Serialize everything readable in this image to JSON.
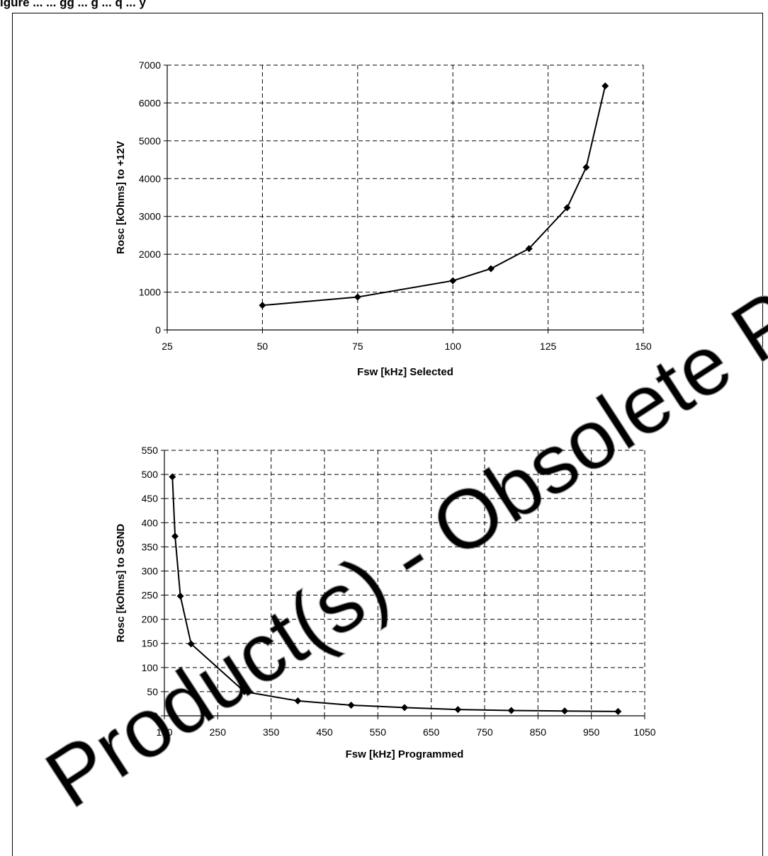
{
  "header": {
    "text": "igure ... ... gg ... g ... q ... y"
  },
  "watermark": {
    "text": "Product(s) - Obsolete Product(s)"
  },
  "chart_data": [
    {
      "type": "line",
      "title": "",
      "xlabel": "Fsw [kHz] Selected",
      "ylabel": "Rosc [kOhms] to +12V",
      "xlim": [
        25,
        150
      ],
      "ylim": [
        0,
        7000
      ],
      "xticks": [
        25,
        50,
        75,
        100,
        125,
        150
      ],
      "yticks": [
        0,
        1000,
        2000,
        3000,
        4000,
        5000,
        6000,
        7000
      ],
      "grid": true,
      "marker": "diamond",
      "series": [
        {
          "x": [
            50,
            75,
            100,
            110,
            120,
            130,
            135,
            140
          ],
          "y": [
            650,
            870,
            1300,
            1620,
            2150,
            3230,
            4300,
            6450
          ]
        }
      ]
    },
    {
      "type": "line",
      "title": "",
      "xlabel": "Fsw [kHz] Programmed",
      "ylabel": "Rosc [kOhms] to SGND",
      "xlim": [
        150,
        1050
      ],
      "ylim": [
        0,
        550
      ],
      "xticks": [
        150,
        250,
        350,
        450,
        550,
        650,
        750,
        850,
        950,
        1050
      ],
      "yticks": [
        0,
        50,
        100,
        150,
        200,
        250,
        300,
        350,
        400,
        450,
        500,
        550
      ],
      "grid": true,
      "marker": "diamond",
      "series": [
        {
          "x": [
            165,
            170,
            180,
            200,
            300,
            400,
            500,
            600,
            700,
            800,
            900,
            1000
          ],
          "y": [
            495,
            372,
            248,
            149,
            50,
            31,
            22,
            17,
            13,
            11,
            10,
            9
          ]
        }
      ]
    }
  ]
}
